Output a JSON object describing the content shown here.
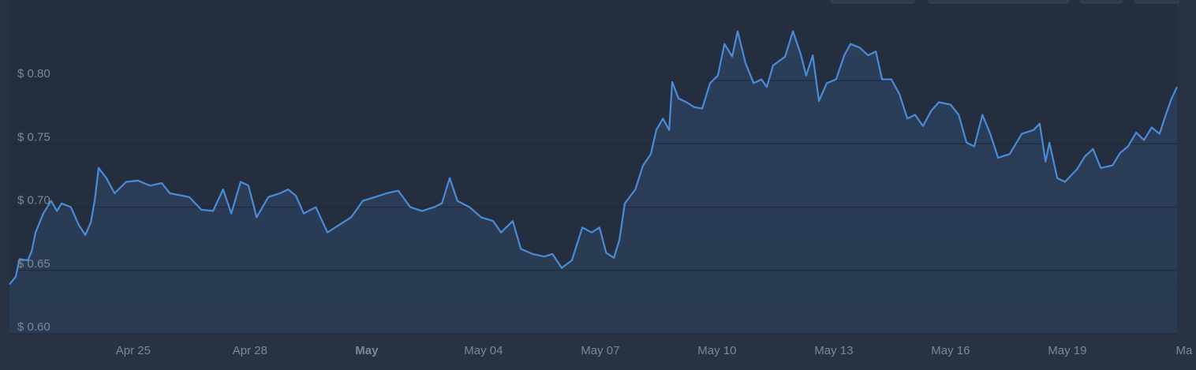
{
  "chart_data": {
    "type": "line",
    "ylim": [
      0.6,
      0.85
    ],
    "yticks": [
      {
        "value": 0.6,
        "label": "$ 0.60"
      },
      {
        "value": 0.65,
        "label": "$ 0.65"
      },
      {
        "value": 0.7,
        "label": "$ 0.70"
      },
      {
        "value": 0.75,
        "label": "$ 0.75"
      },
      {
        "value": 0.8,
        "label": "$ 0.80"
      }
    ],
    "xlim": [
      0,
      30
    ],
    "xticks": [
      {
        "value": 3.18,
        "label": "Apr 25"
      },
      {
        "value": 6.18,
        "label": "Apr 28"
      },
      {
        "value": 9.18,
        "label": "May",
        "bold": true
      },
      {
        "value": 12.18,
        "label": "May 04"
      },
      {
        "value": 15.18,
        "label": "May 07"
      },
      {
        "value": 18.18,
        "label": "May 10"
      },
      {
        "value": 21.18,
        "label": "May 13"
      },
      {
        "value": 24.18,
        "label": "May 16"
      },
      {
        "value": 27.18,
        "label": "May 19"
      },
      {
        "value": 30.18,
        "label": "Ma"
      }
    ],
    "grid": true,
    "x": [
      0.0,
      0.16,
      0.26,
      0.47,
      0.57,
      0.67,
      0.87,
      1.07,
      1.22,
      1.34,
      1.58,
      1.78,
      1.95,
      2.09,
      2.19,
      2.29,
      2.49,
      2.7,
      3.0,
      3.3,
      3.61,
      3.91,
      4.12,
      4.62,
      4.93,
      5.23,
      5.49,
      5.7,
      5.94,
      6.14,
      6.35,
      6.65,
      6.95,
      7.16,
      7.36,
      7.56,
      7.87,
      8.17,
      8.47,
      8.78,
      9.08,
      9.39,
      9.69,
      9.99,
      10.3,
      10.6,
      10.91,
      11.11,
      11.31,
      11.51,
      11.82,
      12.12,
      12.43,
      12.63,
      12.93,
      13.14,
      13.44,
      13.74,
      13.95,
      14.19,
      14.45,
      14.72,
      14.96,
      15.16,
      15.33,
      15.53,
      15.67,
      15.81,
      16.08,
      16.28,
      16.48,
      16.62,
      16.79,
      16.95,
      17.03,
      17.19,
      17.39,
      17.6,
      17.8,
      18.0,
      18.2,
      18.37,
      18.57,
      18.71,
      18.91,
      19.12,
      19.32,
      19.46,
      19.62,
      19.93,
      20.13,
      20.33,
      20.47,
      20.64,
      20.8,
      21.0,
      21.24,
      21.45,
      21.61,
      21.85,
      22.06,
      22.26,
      22.42,
      22.66,
      22.87,
      23.07,
      23.27,
      23.47,
      23.68,
      23.88,
      24.18,
      24.39,
      24.59,
      24.79,
      25.0,
      25.2,
      25.4,
      25.7,
      26.01,
      26.31,
      26.47,
      26.62,
      26.72,
      26.92,
      27.12,
      27.43,
      27.63,
      27.84,
      28.04,
      28.34,
      28.54,
      28.74,
      28.95,
      29.15,
      29.35,
      29.55,
      29.71,
      29.86,
      30.0
    ],
    "series": [
      {
        "color": "#4a8bd8",
        "values": [
          0.639,
          0.645,
          0.659,
          0.658,
          0.665,
          0.68,
          0.695,
          0.705,
          0.697,
          0.703,
          0.7,
          0.686,
          0.678,
          0.688,
          0.705,
          0.731,
          0.723,
          0.711,
          0.72,
          0.721,
          0.717,
          0.719,
          0.711,
          0.708,
          0.698,
          0.697,
          0.714,
          0.695,
          0.72,
          0.717,
          0.692,
          0.708,
          0.711,
          0.714,
          0.709,
          0.695,
          0.7,
          0.68,
          0.686,
          0.692,
          0.705,
          0.708,
          0.711,
          0.713,
          0.7,
          0.697,
          0.7,
          0.703,
          0.723,
          0.705,
          0.7,
          0.692,
          0.689,
          0.68,
          0.689,
          0.667,
          0.663,
          0.661,
          0.663,
          0.652,
          0.658,
          0.684,
          0.68,
          0.684,
          0.664,
          0.66,
          0.674,
          0.703,
          0.714,
          0.733,
          0.742,
          0.761,
          0.77,
          0.761,
          0.799,
          0.786,
          0.783,
          0.779,
          0.778,
          0.798,
          0.804,
          0.829,
          0.819,
          0.839,
          0.814,
          0.798,
          0.801,
          0.795,
          0.812,
          0.819,
          0.839,
          0.821,
          0.804,
          0.82,
          0.784,
          0.798,
          0.801,
          0.82,
          0.829,
          0.826,
          0.82,
          0.823,
          0.801,
          0.801,
          0.789,
          0.77,
          0.773,
          0.764,
          0.776,
          0.783,
          0.781,
          0.773,
          0.751,
          0.748,
          0.773,
          0.758,
          0.739,
          0.742,
          0.758,
          0.761,
          0.766,
          0.736,
          0.751,
          0.723,
          0.72,
          0.73,
          0.74,
          0.746,
          0.731,
          0.733,
          0.743,
          0.748,
          0.759,
          0.753,
          0.763,
          0.758,
          0.773,
          0.786,
          0.795
        ]
      }
    ]
  }
}
